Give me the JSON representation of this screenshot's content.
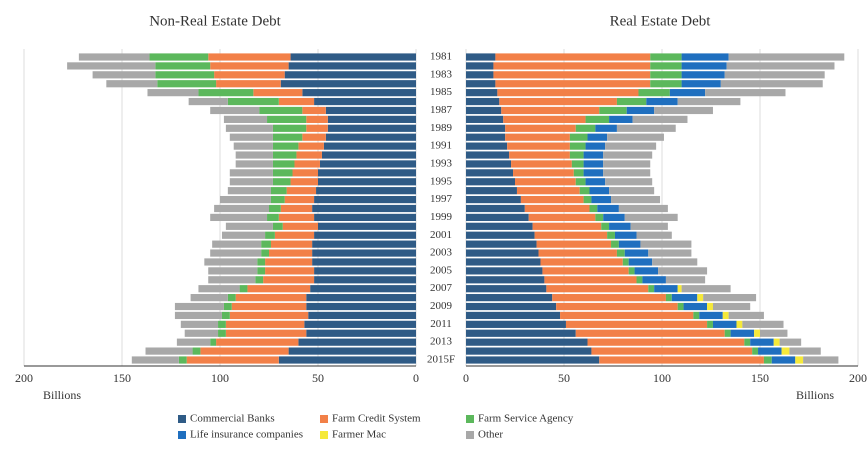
{
  "chart_data": [
    {
      "type": "bar",
      "title": "Non-Real Estate Debt",
      "x_label": "Billions",
      "categories": [
        "1981",
        null,
        "1983",
        null,
        "1985",
        null,
        "1987",
        null,
        "1989",
        null,
        "1991",
        null,
        "1993",
        null,
        "1995",
        null,
        "1997",
        null,
        "1999",
        null,
        "2001",
        null,
        "2003",
        null,
        "2005",
        null,
        "2007",
        null,
        "2009",
        null,
        "2011",
        null,
        "2013",
        null,
        "2015F"
      ],
      "xlim": [
        200,
        0
      ],
      "xticks": [
        200,
        150,
        100,
        50,
        0
      ],
      "grid": true,
      "series": [
        {
          "color": "#2f5b86",
          "values": [
            64,
            65,
            67,
            69,
            58,
            52,
            46,
            45,
            45,
            46,
            47,
            48,
            49,
            50,
            50,
            51,
            52,
            53,
            52,
            50,
            52,
            53,
            53,
            53,
            52,
            52,
            54,
            56,
            56,
            55,
            57,
            56,
            60,
            65,
            70
          ]
        },
        {
          "color": "#f28048",
          "values": [
            42,
            40,
            36,
            33,
            25,
            18,
            12,
            11,
            11,
            12,
            13,
            13,
            13,
            13,
            14,
            15,
            15,
            16,
            18,
            18,
            20,
            21,
            22,
            24,
            25,
            26,
            32,
            36,
            38,
            40,
            40,
            41,
            42,
            45,
            47
          ]
        },
        {
          "color": "#5cb85c",
          "values": [
            30,
            28,
            30,
            30,
            28,
            26,
            22,
            20,
            17,
            15,
            13,
            12,
            11,
            10,
            9,
            8,
            7,
            6,
            6,
            5,
            5,
            5,
            4,
            4,
            4,
            4,
            4,
            4,
            4,
            4,
            4,
            4,
            3,
            4,
            4
          ]
        },
        {
          "color": "#a8a8a8",
          "values": [
            36,
            45,
            32,
            26,
            26,
            20,
            25,
            22,
            24,
            22,
            20,
            19,
            19,
            22,
            22,
            22,
            26,
            28,
            29,
            24,
            22,
            25,
            26,
            27,
            25,
            24,
            21,
            19,
            25,
            24,
            19,
            17,
            17,
            24,
            24
          ]
        }
      ]
    },
    {
      "type": "bar",
      "title": "Real Estate Debt",
      "x_label": "Billions",
      "xlim": [
        0,
        200
      ],
      "xticks": [
        0,
        50,
        100,
        150,
        200
      ],
      "grid": true,
      "series": [
        {
          "name": "Commercial Banks",
          "color": "#2f5b86",
          "values": [
            15,
            14,
            14,
            15,
            16,
            17,
            18,
            19,
            20,
            20,
            21,
            22,
            23,
            24,
            25,
            26,
            28,
            30,
            32,
            34,
            35,
            36,
            37,
            38,
            39,
            40,
            41,
            44,
            46,
            48,
            51,
            56,
            62,
            64,
            68
          ]
        },
        {
          "name": "Farm Credit System",
          "color": "#f28048",
          "values": [
            79,
            80,
            80,
            79,
            72,
            60,
            50,
            42,
            36,
            33,
            32,
            31,
            31,
            31,
            31,
            32,
            32,
            33,
            34,
            35,
            37,
            38,
            40,
            42,
            44,
            47,
            52,
            58,
            62,
            68,
            72,
            76,
            80,
            82,
            84
          ]
        },
        {
          "name": "Farm Service Agency",
          "color": "#5cb85c",
          "values": [
            16,
            16,
            16,
            16,
            16,
            15,
            14,
            12,
            10,
            9,
            8,
            7,
            6,
            5,
            5,
            5,
            4,
            4,
            4,
            4,
            4,
            4,
            4,
            3,
            3,
            3,
            3,
            3,
            3,
            3,
            3,
            3,
            3,
            3,
            4
          ]
        },
        {
          "name": "Life insurance companies",
          "color": "#1f6fbf",
          "values": [
            24,
            23,
            22,
            20,
            18,
            16,
            14,
            12,
            11,
            10,
            10,
            10,
            10,
            10,
            10,
            10,
            10,
            11,
            11,
            11,
            11,
            11,
            12,
            12,
            12,
            12,
            12,
            13,
            12,
            12,
            12,
            12,
            12,
            12,
            12
          ]
        },
        {
          "name": "Farmer Mac",
          "color": "#f5e93a",
          "values": [
            0,
            0,
            0,
            0,
            0,
            0,
            0,
            0,
            0,
            0,
            0,
            0,
            0,
            0,
            0,
            0,
            0,
            0,
            0,
            0,
            0,
            0,
            0,
            0,
            0,
            0,
            2,
            3,
            3,
            3,
            3,
            3,
            3,
            4,
            4
          ]
        },
        {
          "name": "Other",
          "color": "#a8a8a8",
          "values": [
            59,
            55,
            51,
            52,
            41,
            32,
            30,
            28,
            30,
            29,
            26,
            25,
            24,
            24,
            24,
            23,
            25,
            25,
            27,
            19,
            18,
            26,
            22,
            23,
            25,
            20,
            25,
            27,
            19,
            18,
            21,
            14,
            11,
            16,
            18
          ]
        }
      ]
    }
  ]
}
